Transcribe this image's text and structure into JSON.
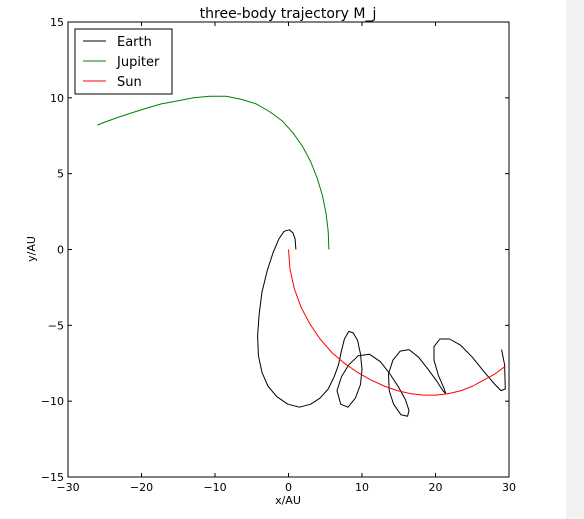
{
  "chart_data": {
    "type": "line",
    "title": "three-body trajectory M_j",
    "xlabel": "x/AU",
    "ylabel": "y/AU",
    "xlim": [
      -30,
      30
    ],
    "ylim": [
      -15,
      15
    ],
    "xticks": [
      -30,
      -20,
      -10,
      0,
      10,
      20,
      30
    ],
    "yticks": [
      -15,
      -10,
      -5,
      0,
      5,
      10,
      15
    ],
    "xtick_labels": [
      "−30",
      "−20",
      "−10",
      "0",
      "10",
      "20",
      "30"
    ],
    "ytick_labels": [
      "−15",
      "−10",
      "−5",
      "0",
      "5",
      "10",
      "15"
    ],
    "grid": false,
    "legend_position": "top-left",
    "series": [
      {
        "name": "Earth",
        "color": "#000000",
        "x": [
          1.0,
          0.9,
          0.6,
          0.1,
          -0.6,
          -1.3,
          -2.1,
          -2.9,
          -3.6,
          -4.0,
          -4.2,
          -4.1,
          -3.6,
          -2.8,
          -1.6,
          -0.1,
          1.5,
          3.0,
          4.3,
          5.4,
          6.2,
          6.8,
          7.2,
          7.6,
          8.2,
          8.8,
          9.4,
          9.8,
          10.0,
          9.8,
          9.1,
          8.1,
          7.1,
          6.6,
          7.2,
          8.2,
          9.5,
          11.0,
          12.5,
          13.8,
          15.0,
          15.9,
          16.4,
          16.2,
          15.3,
          14.3,
          13.7,
          13.6,
          14.2,
          15.2,
          16.4,
          17.7,
          19.0,
          20.2,
          21.0,
          21.4,
          21.2,
          20.4,
          19.8,
          19.8,
          20.6,
          21.9,
          23.4,
          25.0,
          26.5,
          27.9,
          28.9,
          29.5,
          29.4,
          29.0
        ],
        "y": [
          0.0,
          0.7,
          1.1,
          1.3,
          1.2,
          0.7,
          -0.2,
          -1.4,
          -2.8,
          -4.3,
          -5.7,
          -7.0,
          -8.1,
          -9.0,
          -9.7,
          -10.2,
          -10.4,
          -10.2,
          -9.8,
          -9.2,
          -8.4,
          -7.6,
          -6.7,
          -5.9,
          -5.4,
          -5.5,
          -6.0,
          -6.9,
          -7.9,
          -8.9,
          -9.8,
          -10.4,
          -10.2,
          -9.3,
          -8.4,
          -7.6,
          -7.0,
          -6.9,
          -7.4,
          -8.2,
          -9.1,
          -9.9,
          -10.6,
          -11.0,
          -10.9,
          -10.2,
          -9.3,
          -8.2,
          -7.3,
          -6.7,
          -6.6,
          -7.1,
          -7.9,
          -8.7,
          -9.3,
          -9.5,
          -9.2,
          -8.3,
          -7.3,
          -6.4,
          -5.9,
          -5.9,
          -6.3,
          -7.1,
          -8.0,
          -8.8,
          -9.3,
          -9.2,
          -7.6,
          -6.6
        ]
      },
      {
        "name": "Jupiter",
        "color": "#008000",
        "x": [
          5.5,
          5.4,
          5.1,
          4.6,
          3.9,
          3.0,
          1.9,
          0.6,
          -0.9,
          -2.6,
          -4.4,
          -6.4,
          -8.5,
          -10.7,
          -12.9,
          -15.1,
          -17.3,
          -19.4,
          -21.4,
          -23.3,
          -25.0,
          -26.0
        ],
        "y": [
          0.0,
          1.2,
          2.4,
          3.6,
          4.7,
          5.8,
          6.8,
          7.7,
          8.5,
          9.1,
          9.6,
          9.9,
          10.1,
          10.1,
          10.0,
          9.8,
          9.6,
          9.3,
          9.0,
          8.7,
          8.4,
          8.2
        ]
      },
      {
        "name": "Sun",
        "color": "#ff0000",
        "x": [
          0.0,
          0.2,
          0.8,
          1.7,
          2.9,
          4.3,
          5.9,
          7.6,
          9.4,
          11.2,
          13.0,
          14.8,
          16.6,
          18.4,
          20.1,
          21.8,
          23.5,
          25.1,
          26.6,
          28.1,
          29.5
        ],
        "y": [
          0.0,
          -1.3,
          -2.6,
          -3.8,
          -4.9,
          -5.9,
          -6.8,
          -7.5,
          -8.1,
          -8.6,
          -9.0,
          -9.3,
          -9.5,
          -9.6,
          -9.6,
          -9.5,
          -9.3,
          -9.0,
          -8.6,
          -8.2,
          -7.7
        ]
      }
    ]
  }
}
